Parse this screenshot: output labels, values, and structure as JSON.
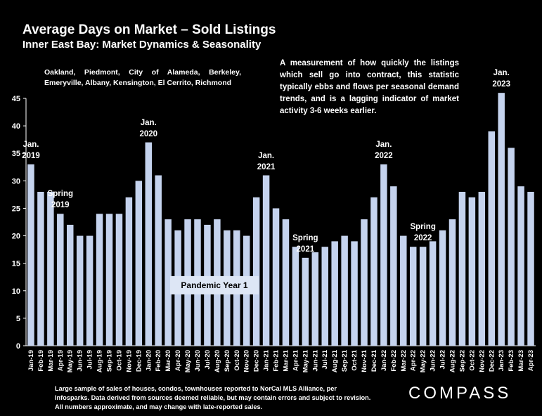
{
  "title": "Average Days on Market – Sold Listings",
  "subtitle": "Inner East Bay: Market Dynamics & Seasonality",
  "region_note": "Oakland, Piedmont, City of Alameda, Berkeley, Emeryville, Albany, Kensington, El Cerrito, Richmond",
  "description_note": "A measurement of how quickly the listings which sell go into contract, this statistic typically ebbs and flows per seasonal demand trends, and is a lagging indicator of market activity 3-6 weeks earlier.",
  "footnote": "Large sample of sales of houses, condos, townhouses reported to NorCal MLS Alliance, per Infosparks. Data derived from sources deemed reliable, but may contain errors and subject to revision. All numbers approximate, and may change with late-reported sales.",
  "brand": "COMPASS",
  "pandemic_label": "Pandemic Year 1",
  "colors": {
    "bar": "#c5d3ee",
    "background": "#000000",
    "text": "#ffffff",
    "callout_box": "#dde6f5"
  },
  "annotations": [
    {
      "text": [
        "Jan.",
        "2019"
      ],
      "category": "Jan-19"
    },
    {
      "text": [
        "Spring",
        "2019"
      ],
      "category": "Apr-19"
    },
    {
      "text": [
        "Jan.",
        "2020"
      ],
      "category": "Jan-20"
    },
    {
      "text": [
        "Jan.",
        "2021"
      ],
      "category": "Jan-21"
    },
    {
      "text": [
        "Spring",
        "2021"
      ],
      "category": "May-21"
    },
    {
      "text": [
        "Jan.",
        "2022"
      ],
      "category": "Jan-22"
    },
    {
      "text": [
        "Spring",
        "2022"
      ],
      "category": "May-22"
    },
    {
      "text": [
        "Jan.",
        "2023"
      ],
      "category": "Jan-23"
    }
  ],
  "chart_data": {
    "type": "bar",
    "categories": [
      "Jan-19",
      "Feb-19",
      "Mar-19",
      "Apr-19",
      "May-19",
      "Jun-19",
      "Jul-19",
      "Aug-19",
      "Sep-19",
      "Oct-19",
      "Nov-19",
      "Dec-19",
      "Jan-20",
      "Feb-20",
      "Mar-20",
      "Apr-20",
      "May-20",
      "Jun-20",
      "Jul-20",
      "Aug-20",
      "Sep-20",
      "Oct-20",
      "Nov-20",
      "Dec-20",
      "Jan-21",
      "Feb-21",
      "Mar-21",
      "Apr-21",
      "May-21",
      "Jun-21",
      "Jul-21",
      "Aug-21",
      "Sep-21",
      "Oct-21",
      "Nov-21",
      "Dec-21",
      "Jan-22",
      "Feb-22",
      "Mar-22",
      "Apr-22",
      "May-22",
      "Jun-22",
      "Jul-22",
      "Aug-22",
      "Sep-22",
      "Oct-22",
      "Nov-22",
      "Dec-22",
      "Jan-23",
      "Feb-23",
      "Mar-23",
      "Apr-23"
    ],
    "values": [
      33,
      28,
      28,
      24,
      22,
      20,
      20,
      24,
      24,
      24,
      27,
      30,
      37,
      31,
      23,
      21,
      23,
      23,
      22,
      23,
      21,
      21,
      20,
      27,
      31,
      25,
      23,
      18,
      16,
      17,
      18,
      19,
      20,
      19,
      23,
      27,
      33,
      29,
      20,
      18,
      18,
      19,
      21,
      23,
      28,
      27,
      28,
      39,
      46,
      36,
      29,
      28
    ],
    "title": "Average Days on Market – Sold Listings",
    "xlabel": "",
    "ylabel": "",
    "ylim": [
      0,
      45
    ],
    "yticks": [
      0,
      5,
      10,
      15,
      20,
      25,
      30,
      35,
      40,
      45
    ],
    "grid": false,
    "legend": "none"
  }
}
